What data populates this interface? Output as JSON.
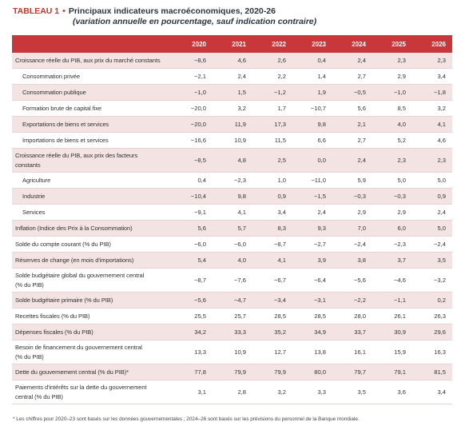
{
  "title": {
    "label": "TABLEAU 1",
    "text": "Principaux indicateurs macroéconomiques, 2020-26",
    "subtitle": "(variation annuelle en pourcentage, sauf indication contraire)"
  },
  "table": {
    "columns": [
      "2020",
      "2021",
      "2022",
      "2023",
      "2024",
      "2025",
      "2026"
    ],
    "rows": [
      [
        "Croissance réelle du PIB, aux prix du marché constants",
        "−8,6",
        "4,6",
        "2,6",
        "0,4",
        "2,4",
        "2,3",
        "2,3"
      ],
      [
        "Consommation privée",
        "−2,1",
        "2,4",
        "2,2",
        "1,4",
        "2,7",
        "2,9",
        "3,4"
      ],
      [
        "Consommation publique",
        "−1,0",
        "1,5",
        "−1,2",
        "1,9",
        "−0,5",
        "−1,0",
        "−1,8"
      ],
      [
        "Formation brute de capital fixe",
        "−20,0",
        "3,2",
        "1,7",
        "−10,7",
        "5,6",
        "8,5",
        "3,2"
      ],
      [
        "Exportations de biens et services",
        "−20,0",
        "11,9",
        "17,3",
        "9,8",
        "2,1",
        "4,0",
        "4,1"
      ],
      [
        "Importations de biens et services",
        "−16,6",
        "10,9",
        "11,5",
        "6,6",
        "2,7",
        "5,2",
        "4,6"
      ],
      [
        "Croissance réelle du PIB, aux prix des facteurs\nconstants",
        "−8,5",
        "4,8",
        "2,5",
        "0,0",
        "2,4",
        "2,3",
        "2,3"
      ],
      [
        "Agriculture",
        "0,4",
        "−2,3",
        "1,0",
        "−11,0",
        "5,9",
        "5,0",
        "5,0"
      ],
      [
        "Industrie",
        "−10,4",
        "9,8",
        "0,9",
        "−1,5",
        "−0,3",
        "−0,3",
        "0,9"
      ],
      [
        "Services",
        "−9,1",
        "4,1",
        "3,4",
        "2,4",
        "2,9",
        "2,9",
        "2,4"
      ],
      [
        "Inflation (Indice des Prix à la Consommation)",
        "5,6",
        "5,7",
        "8,3",
        "9,3",
        "7,0",
        "6,0",
        "5,0"
      ],
      [
        "Solde du compte courant (% du PIB)",
        "−6,0",
        "−6,0",
        "−8,7",
        "−2,7",
        "−2,4",
        "−2,3",
        "−2,4"
      ],
      [
        "Réserves de change (en mois d'importations)",
        "5,4",
        "4,0",
        "4,1",
        "3,9",
        "3,8",
        "3,7",
        "3,5"
      ],
      [
        "Solde budgétaire global du gouvernement central\n(% du PIB)",
        "−8,7",
        "−7,6",
        "−6,7",
        "−6,4",
        "−5,6",
        "−4,6",
        "−3,2"
      ],
      [
        "Solde budgétaire primaire (% du PIB)",
        "−5,6",
        "−4,7",
        "−3,4",
        "−3,1",
        "−2,2",
        "−1,1",
        "0,2"
      ],
      [
        "Recettes fiscales (% du PIB)",
        "25,5",
        "25,7",
        "28,5",
        "28,5",
        "28,0",
        "26,1",
        "26,3"
      ],
      [
        "Dépenses fiscales (% du PIB)",
        "34,2",
        "33,3",
        "35,2",
        "34,9",
        "33,7",
        "30,9",
        "29,6"
      ],
      [
        "Besoin de financement du gouvernement central\n(% du PIB)",
        "13,3",
        "10,9",
        "12,7",
        "13,8",
        "16,1",
        "15,9",
        "16,3"
      ],
      [
        "Dette du gouvernement central (% du PIB)*",
        "77,8",
        "79,9",
        "79,9",
        "80,0",
        "79,7",
        "79,1",
        "81,5"
      ],
      [
        "Paiements d'intérêts sur la dette du gouvernement\ncentral (% du PIB)",
        "3,1",
        "2,8",
        "3,2",
        "3,3",
        "3,5",
        "3,6",
        "3,4"
      ]
    ]
  },
  "footnote": "* Les chiffres pour 2020–23 sont basés sur les données gouvernementales ; 2024–26 sont basés sur les prévisions du personnel de la Banque mondiale."
}
